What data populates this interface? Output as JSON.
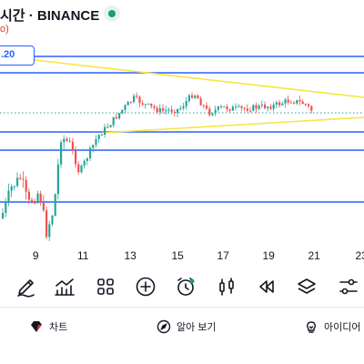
{
  "header": {
    "title": "시간 · BINANCE",
    "subline": "o)"
  },
  "price_label": ".20",
  "x_axis": {
    "ticks": [
      {
        "label": "9",
        "pos": 0.098
      },
      {
        "label": "11",
        "pos": 0.228
      },
      {
        "label": "13",
        "pos": 0.358
      },
      {
        "label": "15",
        "pos": 0.488
      },
      {
        "label": "17",
        "pos": 0.613
      },
      {
        "label": "19",
        "pos": 0.738
      },
      {
        "label": "21",
        "pos": 0.863
      },
      {
        "label": "23",
        "pos": 0.993
      }
    ]
  },
  "toolbar": {
    "tools": [
      {
        "name": "brush-tool",
        "icon": "pen-icon"
      },
      {
        "name": "indicators-tool",
        "icon": "chart-trend-icon"
      },
      {
        "name": "templates-tool",
        "icon": "grid-icon"
      },
      {
        "name": "add-tool",
        "icon": "plus-circle-icon"
      },
      {
        "name": "alert-tool",
        "icon": "alarm-clock-icon"
      },
      {
        "name": "chart-type-tool",
        "icon": "candles-icon"
      },
      {
        "name": "replay-tool",
        "icon": "rewind-icon"
      },
      {
        "name": "layers-tool",
        "icon": "layers-icon"
      },
      {
        "name": "settings-tool",
        "icon": "sliders-icon"
      }
    ]
  },
  "bottom_tabs": {
    "chart_label": "차트",
    "learn_label": "알아 보기",
    "ideas_label": "아이디어"
  },
  "colors": {
    "up": "#26a69a",
    "down": "#ef5350",
    "level_line": "#2962ff",
    "trend_line": "#f5e642",
    "accent_green": "#1f9d6b"
  }
}
